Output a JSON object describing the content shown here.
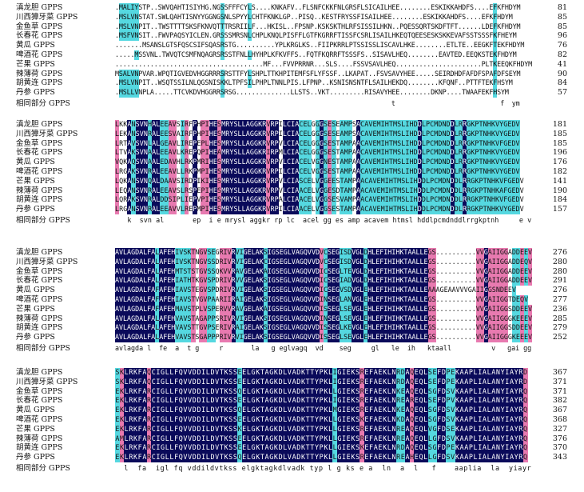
{
  "colors": {
    "identical": "#0a0a5a",
    "high": "#e87ab0",
    "medium": "#55d8e0",
    "text_on_dark": "#ffffff"
  },
  "blocks": [
    {
      "rows": [
        {
          "label": "滇龙胆 GPPS",
          "seq": ".MALIYSTP..SWVQAHTISIYHG.NGSSFFFCYLS....KNKAFV..FLSNFCKKFNLGRSFLSICAILHEE........ESKIKKAHDFS....EFKFHDYM",
          "num": "81"
        },
        {
          "label": "川西獐牙菜 GPPS",
          "seq": ".MSLVNSTAT.SWLQAHTISNYYGGNGSNLSPYYLCHTFKNKLGP..PISQ..KESTFRYSSFISAILHEE........ESKIKKAHDFS....EFKFHDYM",
          "num": "85"
        },
        {
          "label": "金鱼草 GPPS",
          "seq": ".MSLVNPIT..TWSTTTTSKSFKNVQTTTRSRIILF...HKISL..FPSNP.KSKSKTHLRFSISSILHKN..PQESSQRTSKDFTFT......LDEFKFHDYM",
          "num": "85"
        },
        {
          "label": "长春花 GPPS",
          "seq": ".MSFVNSIT..FWVPAQSYICLEN.GRSSSMRSNLCHPLKNQLPISFFLGTFKGRRFTISSFCSRLISAILHKEQTQEESESKSKKEVAFSSTSSSFKFHEYM",
          "num": "96"
        },
        {
          "label": "黄瓜 GPPS",
          "seq": ".......MSANSLGTSFQSCSIFSQASRSTG..........YPLKRGLKS..FIIPKRRLPTSSISSLISCAVLHKE........ETLTE..EEGKFTEKFHDYM",
          "num": "76"
        },
        {
          "label": "啤酒花 GPPS",
          "seq": ".....MSSVNL.TWVQTCSMFNQAGRSRSSTFNLLHYHPLKFKVFFS..FQTFKQRRFTSSSFS..SISAVLHEQ........EAVTED.EEQKSTEKFHDYM",
          "num": "82"
        },
        {
          "label": "芒果 GPPS",
          "seq": "......................................MF...FVVPRRNR...SLS....FSSVSAVLHEQ......................PLTKEEQKFHDYM",
          "num": "41"
        },
        {
          "label": "辣薄荷 GPPS",
          "seq": "MSALVNPVAR.WPQTIGVEDVHGGRRRSRSTTFYLSHPLTTKHPITEMFSFLYFSSF..LKAPAT..FSVSAVYHEE.....SEIRDHDFAFDFSPAFDFSEYM",
          "num": "90"
        },
        {
          "label": "胡黄连 GPPS",
          "seq": ".MSLVNPIT..WSQTSSILNLQGSNISKKLTPFSILPHPLTNNLPIS.LFPNP..KSNISNSNTFLSAILHEKDQ........KFQNF..PTTFTEKFHSYM",
          "num": "84"
        },
        {
          "label": "丹参 GPPS",
          "seq": ".MSLLVNPLA.....TTCVKDVHGGRRSRSG..............LLSTS..VKT.........RISAVYHEE........DKNP....TWAAFEKFHSYM",
          "num": "57"
        }
      ],
      "consensus_label": "相同部分 GPPS",
      "consensus": "                                                                       t                           f  ym"
    },
    {
      "rows": [
        {
          "label": "滇龙胆 GPPS",
          "seq": "LKKANSVNHALEEAVSIRFPHPIHESMRYSLLAGGKRVRPILCIACELGGGSESEAMPSACAVEMIHTMSLIHDDLPCMDNDDLRRGKPTNHKVYGEDV",
          "num": "181"
        },
        {
          "label": "川西獐牙菜 GPPS",
          "seq": "LEKANSVNRALEESVAIRFPHPIHESMRYSLLAGGKRVRPILCIACELGGGSESEAMPSACAVEMIHTMSLIHDDLPCMDNDDLRRGKPTNHKVYGEDV",
          "num": "185"
        },
        {
          "label": "金鱼草 GPPS",
          "seq": "LRTAVSVNLALGEAVLIREPEPLHESMRYSLLAGGKRVRPVLCIACELGGGSESTAMPAACAVEMIHTMSLIHDDLPCMDNDDLRRGKPTNHKVFGEDV",
          "num": "185"
        },
        {
          "label": "长春花 GPPS",
          "seq": "LTVAKSVNAALEEAVLKREPQPIHEAMRYSLLAGGKRIRPMLCIACELGGGSESTAMPAACAVEMIHTMSLIHDDLPCMDNDDLRRGKPTNHKVYGEDV",
          "num": "196"
        },
        {
          "label": "黄瓜 GPPS",
          "seq": "VQKAQSVNAALEDAVHLRKPMRIHESMRYSLLAGGKRVRPVLCIACELVGGNESTAMPAACAVEMIHTMSLIHDDLPCMDNDDLRRGKPTNHKVYGEDV",
          "num": "176"
        },
        {
          "label": "啤酒花 GPPS",
          "seq": "LRGAKSVNRALEEAVLLRKPMPIHESMRYSLLAGGKRVRPILCIACELVGGSESTAMPAACAVEMIHTMSLIHDDLPCMDNDDLRRGKPTNHKVYGEDV",
          "num": "182"
        },
        {
          "label": "芒果 GPPS",
          "seq": "LQKANSVNQALDAAVSIRDPIKIHESMRYSLLAGGKRVRPVLCIASCELVGGEESTAMPAACAVEMIHTMSLIHDDLPCMDNDDLRRGKPTNHKVFGEDV",
          "num": "141"
        },
        {
          "label": "辣薄荷 GPPS",
          "seq": "LEQANSVNRALEEAVSLRSPEPIHESMRYSLLAGGKRVRPVLCIAACELVGGESDTAMPAACAVEMIHTMSLIHDDLPCMDNDDLRRGKPTNHKAFGEDV",
          "num": "190"
        },
        {
          "label": "胡黄连 GPPS",
          "seq": "LQRAKSVNRALDDSIPLIEPVPIHESMRYSLLAGGKRVRPALCIAACELVGGSESVAMPAACAVEMIHTMSLIHDDLPCMDNDDLRRGKPTNHKVFGEDV",
          "num": "184"
        },
        {
          "label": "丹参 GPPS",
          "seq": "LRGANSVNRALEEAVVLREPMPIHESMRYSLLAGGKRVRPILCIAACELVGGSESTAMPAACAVEMIHTMSLIHDDLPCMDNDDLRRGKPTNHKVYGEDV",
          "num": "157"
        }
      ],
      "consensus_label": "相同部分 GPPS",
      "consensus": "   k  svn al       ep  i e mrysl aggkr rp lc  acel gg es amp acavem htmsl hddlpcmdnddlrrgkptnh     e v"
    },
    {
      "rows": [
        {
          "label": "滇龙胆 GPPS",
          "seq": "AVLAGDALFALAFEHIVSKTNGVSEGRIVRVIGELAKSIGSEGLVAGQVVDVCSEGISDVGLDHLEFIHIHKTAALLEGS..........VVGAIIGGADDEEV",
          "num": "276"
        },
        {
          "label": "川西獐牙菜 GPPS",
          "seq": "AVLAGDALFALAFEHIVSKTNGVSSDRIVRVIGELAKCIGSEGLVAGQVVDVCSEGISDVGLDHLEFIHIHKTAALLEGS..........VVGAIIGGADDEQV",
          "num": "280"
        },
        {
          "label": "金鱼草 GPPS",
          "seq": "AVLAGDALFALAFEHMTSTSTGVSSQKVVRAVGELAKAIGSEGLVAGQVVDICSEGLTEVGLDHLEFIHIHKTAALLEGS..........VVGAIIGGADDEEV",
          "num": "280"
        },
        {
          "label": "长春花 GPPS",
          "seq": "AVLAGDALFALAFEHIATHTKGVSPDRIVRVVGELAKSIGSEGLVAGQVVDICSEGIADVGLDHLEFIHIHKTAALLEGS..........VVGAIIGGADDEEV",
          "num": "291"
        },
        {
          "label": "黄瓜 GPPS",
          "seq": "AVLAGDALFAFAFEHIAVSTEGVSPDRIVRVIGELAKSIGSEGLVAGQVVDICSEGVSDVGLEHLEFIHIHKTAALLEAAAGEAAVVVGAIIGGSNDEEV",
          "num": "276"
        },
        {
          "label": "啤酒花 GPPS",
          "seq": "AVLAGDALFAFAFEHIAVSTVGVPAARIIRAIGELAKSIGSEGLVAGQVVDINSEGLANVGLEHLEFIHIHKTAALLEGS..........VVGAIIGGTDEQV",
          "num": "277"
        },
        {
          "label": "芒果 GPPS",
          "seq": "AVLAGDALFAFAFEHMAVSTPLVSPERVVRAVGELAKAIGSEGLVAGQVVDISSEGLSEVGLEHLEFIHIHKTAALLEGS..........VVGAIIGGSDDEEV",
          "num": "236"
        },
        {
          "label": "辣薄荷 GPPS",
          "seq": "AVLAGDALFALAFEHVAVSTAGAPPSRIVRVIGELAKSIGSEGLVAGQVVDINSEGLSEVGLEHLEFIHIHKTAALLEGS..........VVGAIIGGGKEEEV",
          "num": "285"
        },
        {
          "label": "胡黄连 GPPS",
          "seq": "AVLAGDALFALAFEHVAVSTTGVPSERIVRAIGELAKSIGSEGLVAGQVVDISSEGLKEVGLEHLEFIHIHKTAALLEGS..........VVGAIIGGSDDEEV",
          "num": "279"
        },
        {
          "label": "丹参 GPPS",
          "seq": "AVLAGDALFALAFEHVAVSTSGAPPPRIVRVIGELAKSIGSEGLVAGQVVDISSEGLSEVGLEHLEFIHIHKTAALLEGS..........VVGAIIGGGKEEEV",
          "num": "252"
        }
      ],
      "consensus_label": "相同部分 GPPS",
      "consensus": "avlagda l  fe  a  t g     r       la   g eglvagq  vd    seg     gl   le  ih   ktaall          v   gai gg"
    },
    {
      "rows": [
        {
          "label": "滇龙胆 GPPS",
          "seq": "SKLRKFAQCIGLLFQVVDDILDVTKSSEELGKTAGKDLVADKTTYPKLIGIEKSREFAEKLNRDAQEQLSEFDPEKAAPLIALANYIAYRD",
          "num": "367"
        },
        {
          "label": "川西獐牙菜 GPPS",
          "seq": "SKLRKFAQCIGLLFQVVDDILDVTKSSEELGKTAGKDLVADKTTYPKLIGIEKSREFAEKLNRDAQEQLSEFDPEKAAPLIALANYIAYRD",
          "num": "371"
        },
        {
          "label": "金鱼草 GPPS",
          "seq": "EKLRKFARCIGLLFQVVDDILDVTKSSQELGKTAGKDLVADKTTYPKLLGIEKSREFAEKLNKEAQEQLSGFDSVKAAPLIALANYIAYRQ",
          "num": "371"
        },
        {
          "label": "长春花 GPPS",
          "seq": "EKLRKFARCIGLLFQVVDDILDVTKSSEELGKTAGKDLVADKTTYPKLIGIEKSREFAEKLNREAREQLSEFDPVKAAPLIALANYIAYRQ",
          "num": "382"
        },
        {
          "label": "黄瓜 GPPS",
          "seq": "EKLRKFARCIGLLFQVVDDILDVTKSSQELGKTAGKDLVADKTTYPKLMGIEKSREFAEKLNKEAQEQLSGFDSVKAAPLIALANYIAYRQ",
          "num": "367"
        },
        {
          "label": "啤酒花 GPPS",
          "seq": "EKLRKFARCIGLLFQVVDDILDVTKSSEELGKTAGKDLVADKTTYPKLLGIEKSKEFAEKLNKDAQEQLSGFDSVKAAPLIALANYIAYRQ",
          "num": "368"
        },
        {
          "label": "芒果 GPPS",
          "seq": "EKLRKFARCIGLLFQVVDDILDVTKSSKELGKTAGKDLVADKTTYPKLLGIEKSREFAEKLNREAQEQLVGFDSEKAAPLIALANYIAYRQ",
          "num": "327"
        },
        {
          "label": "辣薄荷 GPPS",
          "seq": "AMLRKFARCIGLLFQVVDDILDVTKSSEELGKTAGKDLVADKTTYPKLLGIEKSREFAEKLNREAQEQLLGFDSVKAAPLIALANYIAYRQ",
          "num": "376"
        },
        {
          "label": "胡黄连 GPPS",
          "seq": "EKLRKFARCIGLLFQVVDDILDVTKSSEELGKTAGKDLVADKTTYPKLLGIEKSKEFAEKLNRDAQEQLSGFDPEKAAPLIALANYIAYRQ",
          "num": "370"
        },
        {
          "label": "丹参 GPPS",
          "seq": "EKLRKFARCIGLLFQVVDDILDVTKSSQELGKTAGKDLVADKTTYPKLLGIEKSREFAEKLNREAHEQLLGFDSVKAAPLIALANYIAYRQ",
          "num": "343"
        }
      ],
      "consensus_label": "相同部分 GPPS",
      "consensus": "  l  fa  igl fq vddildvtkss elgktagkdlvadk typ l g ks e a  ln  a  l   f    aaplia  la  yiayr"
    }
  ]
}
